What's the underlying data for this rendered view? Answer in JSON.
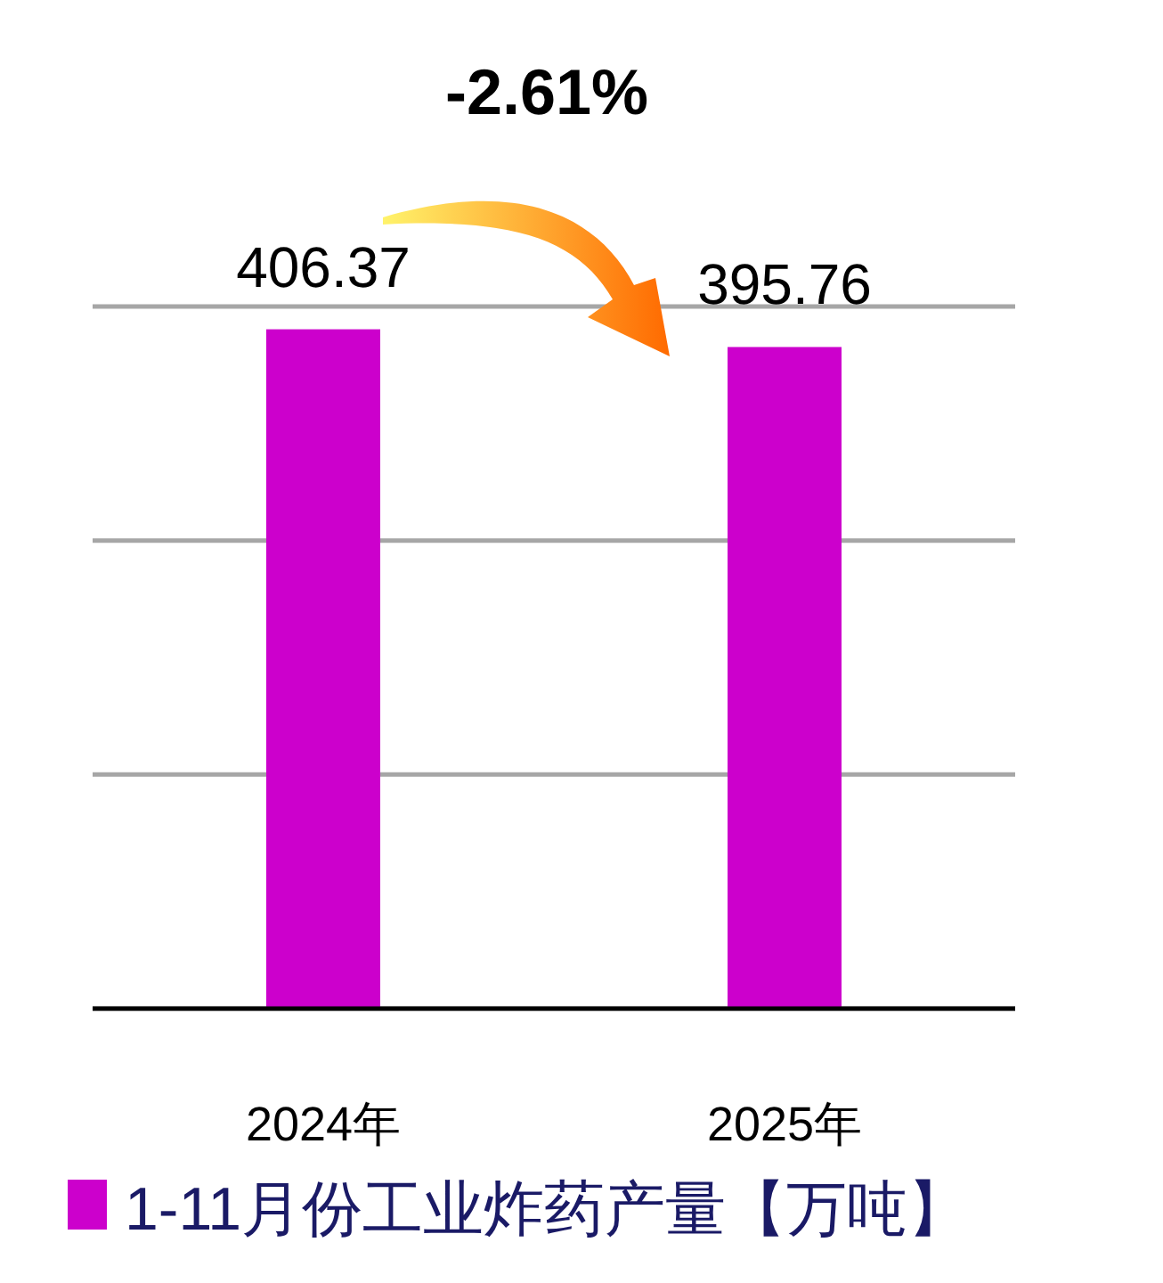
{
  "chart_data": {
    "type": "bar",
    "categories": [
      "2024年",
      "2025年"
    ],
    "series": [
      {
        "name": "1-11月份工业炸药产量【万吨】",
        "color": "#cc00cc",
        "values": [
          406.37,
          395.76
        ]
      }
    ],
    "ylim": [
      0,
      420
    ],
    "yticks": [
      {
        "value": 0,
        "label": null
      },
      {
        "value": 140,
        "label": null
      },
      {
        "value": 280,
        "label": null
      },
      {
        "value": 420,
        "label": null
      }
    ],
    "grid": "y",
    "legend": "bottom",
    "data_labels": true,
    "tick_labels": "x",
    "annotations": [
      "-2.61%"
    ]
  }
}
